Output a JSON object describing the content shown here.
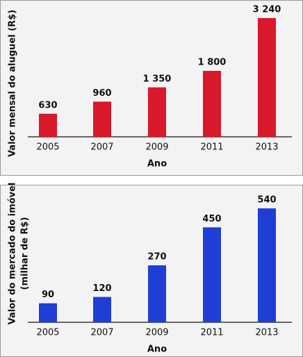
{
  "chart_data": [
    {
      "type": "bar",
      "xlabel": "Ano",
      "ylabel": [
        "Valor mensal do aluguel (R$)"
      ],
      "categories": [
        "2005",
        "2007",
        "2009",
        "2011",
        "2013"
      ],
      "values": [
        630,
        960,
        1350,
        1800,
        3240
      ],
      "value_labels": [
        "630",
        "960",
        "1 350",
        "1 800",
        "3 240"
      ],
      "color": "#d8182b"
    },
    {
      "type": "bar",
      "xlabel": "Ano",
      "ylabel": [
        "Valor do mercado do imóvel",
        "(milhar de R$)"
      ],
      "categories": [
        "2005",
        "2007",
        "2009",
        "2011",
        "2013"
      ],
      "values": [
        90,
        120,
        270,
        450,
        540
      ],
      "value_labels": [
        "90",
        "120",
        "270",
        "450",
        "540"
      ],
      "color": "#1f3ed6"
    }
  ]
}
